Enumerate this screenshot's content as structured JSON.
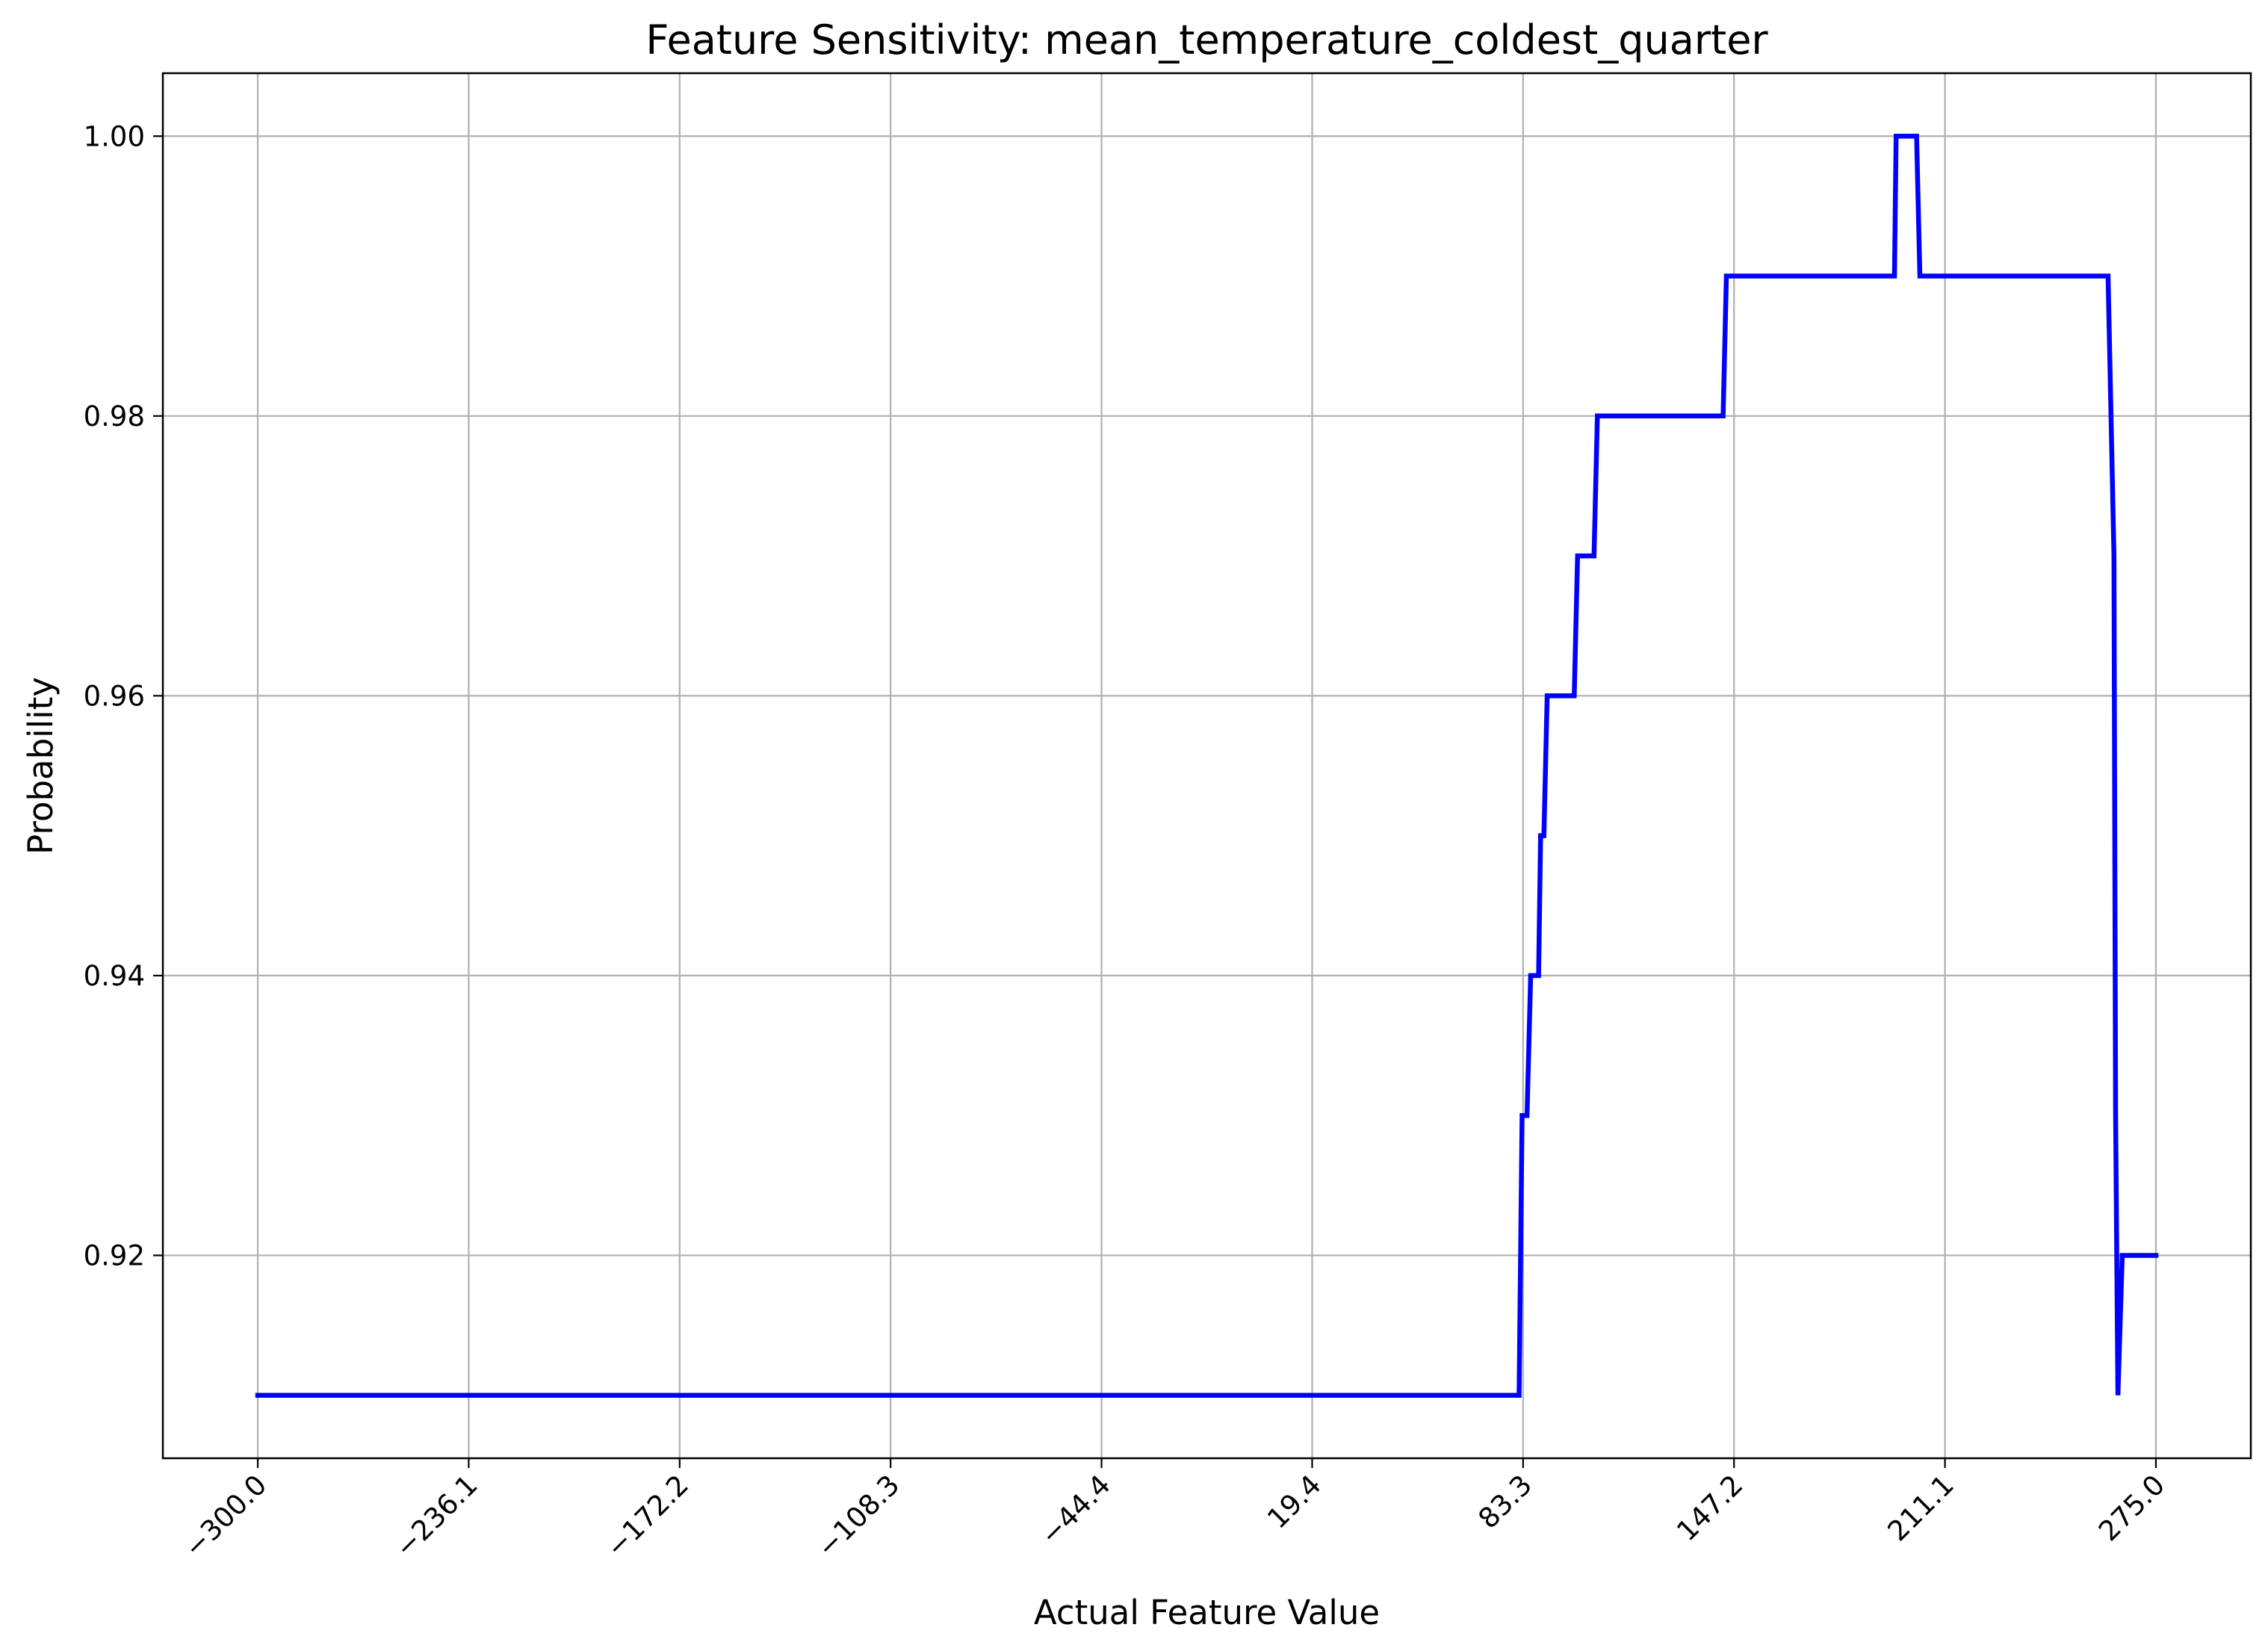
{
  "chart_data": {
    "type": "line",
    "title": "Feature Sensitivity: mean_temperature_coldest_quarter",
    "xlabel": "Actual Feature Value",
    "ylabel": "Probability",
    "xlim": [
      -328.75,
      303.75
    ],
    "ylim": [
      0.9055,
      1.0045
    ],
    "grid": true,
    "x_ticks": [
      -300.0,
      -236.1,
      -172.2,
      -108.3,
      -44.4,
      19.4,
      83.3,
      147.2,
      211.1,
      275.0
    ],
    "x_tick_labels": [
      "−300.0",
      "−236.1",
      "−172.2",
      "−108.3",
      "−44.4",
      "19.4",
      "83.3",
      "147.2",
      "211.1",
      "275.0"
    ],
    "y_ticks": [
      0.92,
      0.94,
      0.96,
      0.98,
      1.0
    ],
    "y_tick_labels": [
      "0.92",
      "0.94",
      "0.96",
      "0.98",
      "1.00"
    ],
    "colors": {
      "series": "#0000ff",
      "grid": "#b0b0b0"
    },
    "series": [
      {
        "points": [
          [
            -300.0,
            0.91
          ],
          [
            82.1,
            0.91
          ],
          [
            83.0,
            0.93
          ],
          [
            84.5,
            0.93
          ],
          [
            85.6,
            0.94
          ],
          [
            88.0,
            0.94
          ],
          [
            88.6,
            0.95
          ],
          [
            89.6,
            0.95
          ],
          [
            90.6,
            0.96
          ],
          [
            98.8,
            0.96
          ],
          [
            99.8,
            0.97
          ],
          [
            104.8,
            0.97
          ],
          [
            105.8,
            0.98
          ],
          [
            143.9,
            0.98
          ],
          [
            144.9,
            0.99
          ],
          [
            195.8,
            0.99
          ],
          [
            196.3,
            1.0
          ],
          [
            202.5,
            1.0
          ],
          [
            203.5,
            0.99
          ],
          [
            260.5,
            0.99
          ],
          [
            262.3,
            0.97
          ],
          [
            262.8,
            0.93
          ],
          [
            263.5,
            0.91
          ],
          [
            264.8,
            0.92
          ],
          [
            275.0,
            0.92
          ]
        ]
      }
    ]
  }
}
